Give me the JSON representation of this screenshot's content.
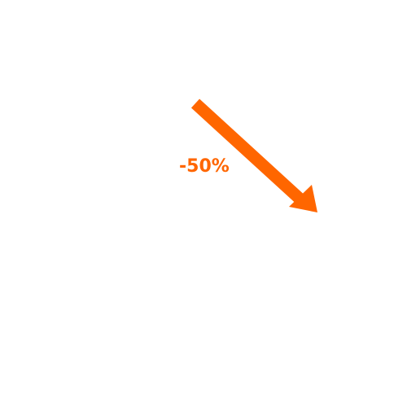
{
  "indicator": {
    "change_text": "-50%",
    "direction": "down-right",
    "icon": "arrow-down-right-icon",
    "color": "#ff6600"
  }
}
